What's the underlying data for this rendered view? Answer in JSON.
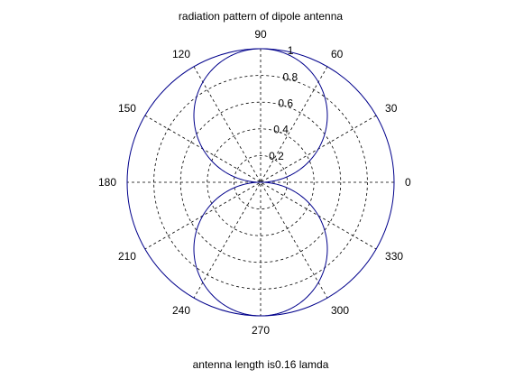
{
  "chart_data": {
    "type": "polar",
    "title": "radiation pattern of dipole antenna",
    "xlabel": "antenna length is0.16 lamda",
    "ylabel": "",
    "rlim": [
      0,
      1
    ],
    "radial_ticks": [
      "0.2",
      "0.4",
      "0.6",
      "0.8",
      "1"
    ],
    "angle_ticks": [
      "0",
      "30",
      "60",
      "90",
      "120",
      "150",
      "180",
      "210",
      "240",
      "270",
      "300",
      "330"
    ],
    "grid": true,
    "series": [
      {
        "formula": "|sin(theta)|",
        "theta_deg": [
          0,
          15,
          30,
          45,
          60,
          75,
          90,
          105,
          120,
          135,
          150,
          165,
          180,
          195,
          210,
          225,
          240,
          255,
          270,
          285,
          300,
          315,
          330,
          345,
          360
        ],
        "r": [
          0,
          0.259,
          0.5,
          0.707,
          0.866,
          0.966,
          1,
          0.966,
          0.866,
          0.707,
          0.5,
          0.259,
          0,
          0.259,
          0.5,
          0.707,
          0.866,
          0.966,
          1,
          0.966,
          0.866,
          0.707,
          0.5,
          0.259,
          0
        ],
        "color": "#00008b"
      }
    ],
    "colors": {
      "axis": "#00008b",
      "grid": "#000000",
      "trace": "#00008b"
    }
  }
}
